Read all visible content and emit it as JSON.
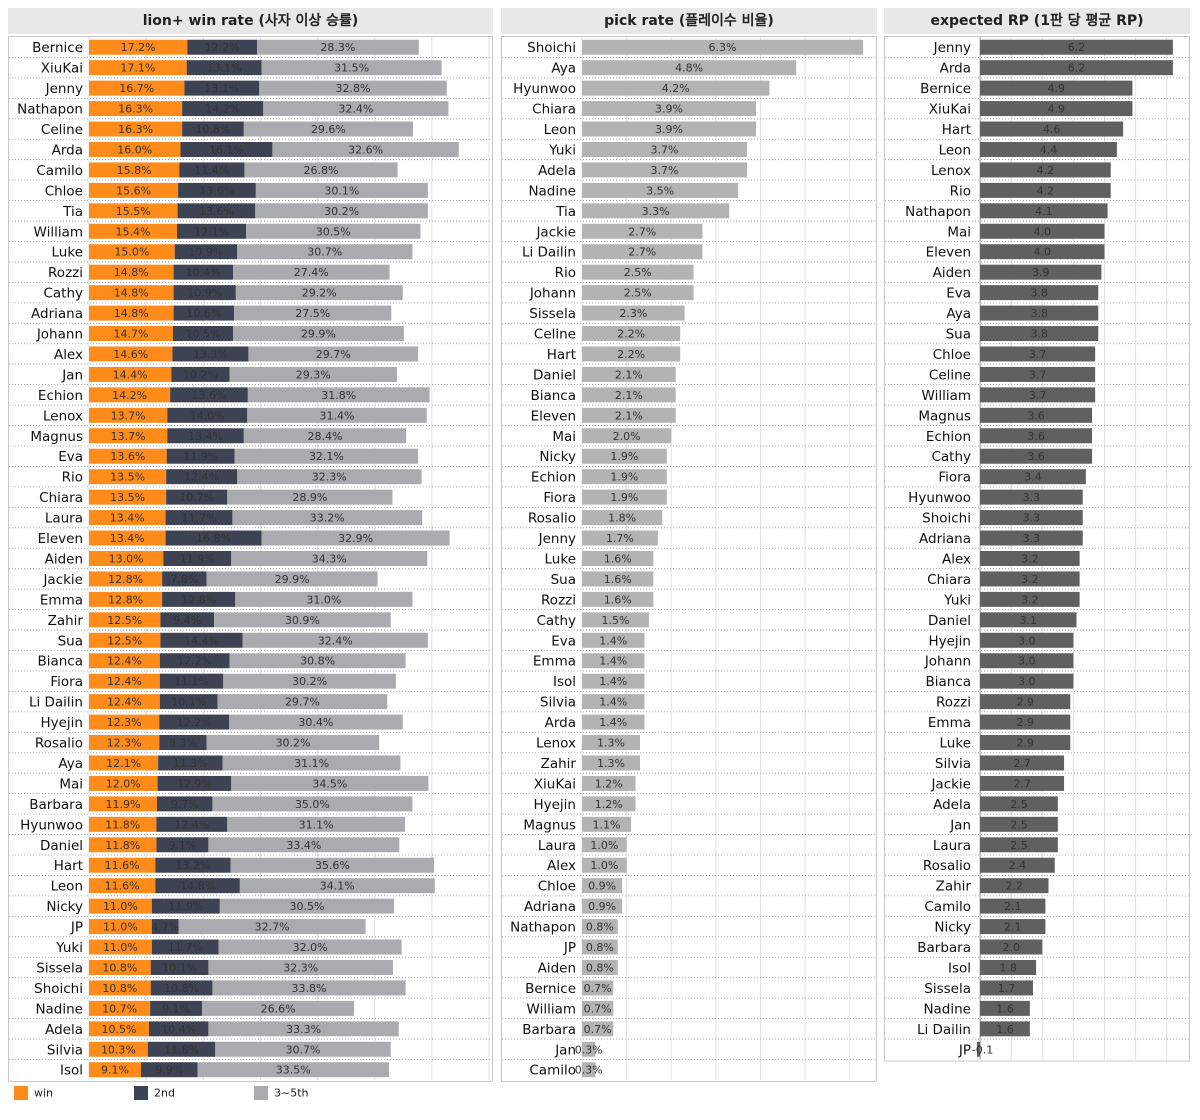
{
  "chart_data": [
    {
      "type": "bar",
      "stacked": true,
      "orientation": "horizontal",
      "title": "lion+ win rate (사자 이상 승률)",
      "categories": [
        "Bernice",
        "XiuKai",
        "Jenny",
        "Nathapon",
        "Celine",
        "Arda",
        "Camilo",
        "Chloe",
        "Tia",
        "William",
        "Luke",
        "Rozzi",
        "Cathy",
        "Adriana",
        "Johann",
        "Alex",
        "Jan",
        "Echion",
        "Lenox",
        "Magnus",
        "Eva",
        "Rio",
        "Chiara",
        "Laura",
        "Eleven",
        "Aiden",
        "Jackie",
        "Emma",
        "Zahir",
        "Sua",
        "Bianca",
        "Fiora",
        "Li Dailin",
        "Hyejin",
        "Rosalio",
        "Aya",
        "Mai",
        "Barbara",
        "Hyunwoo",
        "Daniel",
        "Hart",
        "Leon",
        "Nicky",
        "JP",
        "Yuki",
        "Sissela",
        "Shoichi",
        "Nadine",
        "Adela",
        "Silvia",
        "Isol"
      ],
      "series": [
        {
          "name": "win",
          "color": "#ff8c1a",
          "values": [
            17.2,
            17.1,
            16.7,
            16.3,
            16.3,
            16.0,
            15.8,
            15.6,
            15.5,
            15.4,
            15.0,
            14.8,
            14.8,
            14.8,
            14.7,
            14.6,
            14.4,
            14.2,
            13.7,
            13.7,
            13.6,
            13.5,
            13.5,
            13.4,
            13.4,
            13.0,
            12.8,
            12.8,
            12.5,
            12.5,
            12.4,
            12.4,
            12.4,
            12.3,
            12.3,
            12.1,
            12.0,
            11.9,
            11.8,
            11.8,
            11.6,
            11.6,
            11.0,
            11.0,
            11.0,
            10.8,
            10.8,
            10.7,
            10.5,
            10.3,
            9.1
          ]
        },
        {
          "name": "2nd",
          "color": "#3e4353",
          "values": [
            12.2,
            13.1,
            13.1,
            14.2,
            10.8,
            16.1,
            11.4,
            13.6,
            13.6,
            12.1,
            10.9,
            10.4,
            10.9,
            10.6,
            10.5,
            13.3,
            10.2,
            13.6,
            14.0,
            13.4,
            11.9,
            12.4,
            10.7,
            11.7,
            16.8,
            11.9,
            7.8,
            12.8,
            9.4,
            14.4,
            12.2,
            11.1,
            10.1,
            12.2,
            8.3,
            11.3,
            12.9,
            9.7,
            12.4,
            9.1,
            13.2,
            14.8,
            11.9,
            4.7,
            11.7,
            10.1,
            10.8,
            9.1,
            10.4,
            11.8,
            9.9
          ]
        },
        {
          "name": "3~5th",
          "color": "#a9abae",
          "values": [
            28.3,
            31.5,
            32.8,
            32.4,
            29.6,
            32.6,
            26.8,
            30.1,
            30.2,
            30.5,
            30.7,
            27.4,
            29.2,
            27.5,
            29.9,
            29.7,
            29.3,
            31.8,
            31.4,
            28.4,
            32.1,
            32.3,
            28.9,
            33.2,
            32.9,
            34.3,
            29.9,
            31.0,
            30.9,
            32.4,
            30.8,
            30.2,
            29.7,
            30.4,
            30.2,
            31.1,
            34.5,
            35.0,
            31.1,
            33.4,
            35.6,
            34.1,
            30.5,
            32.7,
            32.0,
            32.3,
            33.8,
            26.6,
            33.3,
            30.7,
            33.5
          ]
        }
      ],
      "value_suffix": "%",
      "xlim": [
        0,
        70
      ],
      "grid": true
    },
    {
      "type": "bar",
      "orientation": "horizontal",
      "title": "pick rate (플레이수 비율)",
      "categories": [
        "Shoichi",
        "Aya",
        "Hyunwoo",
        "Chiara",
        "Leon",
        "Yuki",
        "Adela",
        "Nadine",
        "Tia",
        "Jackie",
        "Li Dailin",
        "Rio",
        "Johann",
        "Sissela",
        "Celine",
        "Hart",
        "Daniel",
        "Bianca",
        "Eleven",
        "Mai",
        "Nicky",
        "Echion",
        "Fiora",
        "Rosalio",
        "Jenny",
        "Luke",
        "Sua",
        "Rozzi",
        "Cathy",
        "Eva",
        "Emma",
        "Isol",
        "Silvia",
        "Arda",
        "Lenox",
        "Zahir",
        "XiuKai",
        "Hyejin",
        "Magnus",
        "Laura",
        "Alex",
        "Chloe",
        "Adriana",
        "Nathapon",
        "JP",
        "Aiden",
        "Bernice",
        "William",
        "Barbara",
        "Jan",
        "Camilo"
      ],
      "values": [
        6.3,
        4.8,
        4.2,
        3.9,
        3.9,
        3.7,
        3.7,
        3.5,
        3.3,
        2.7,
        2.7,
        2.5,
        2.5,
        2.3,
        2.2,
        2.2,
        2.1,
        2.1,
        2.1,
        2.0,
        1.9,
        1.9,
        1.9,
        1.8,
        1.7,
        1.6,
        1.6,
        1.6,
        1.5,
        1.4,
        1.4,
        1.4,
        1.4,
        1.4,
        1.3,
        1.3,
        1.2,
        1.2,
        1.1,
        1.0,
        1.0,
        0.9,
        0.9,
        0.8,
        0.8,
        0.8,
        0.7,
        0.7,
        0.7,
        0.3,
        0.3
      ],
      "color": "#b3b3b3",
      "value_suffix": "%",
      "xlim": [
        0,
        6.5
      ],
      "grid": true
    },
    {
      "type": "bar",
      "orientation": "horizontal",
      "title": "expected RP (1판 당 평균 RP)",
      "categories": [
        "Jenny",
        "Arda",
        "Bernice",
        "XiuKai",
        "Hart",
        "Leon",
        "Lenox",
        "Rio",
        "Nathapon",
        "Mai",
        "Eleven",
        "Aiden",
        "Eva",
        "Aya",
        "Sua",
        "Chloe",
        "Celine",
        "William",
        "Magnus",
        "Echion",
        "Cathy",
        "Fiora",
        "Hyunwoo",
        "Shoichi",
        "Adriana",
        "Alex",
        "Chiara",
        "Yuki",
        "Daniel",
        "Hyejin",
        "Johann",
        "Bianca",
        "Rozzi",
        "Emma",
        "Luke",
        "Silvia",
        "Jackie",
        "Adela",
        "Jan",
        "Laura",
        "Rosalio",
        "Zahir",
        "Camilo",
        "Nicky",
        "Barbara",
        "Isol",
        "Sissela",
        "Nadine",
        "Li Dailin",
        "JP"
      ],
      "values": [
        6.2,
        6.2,
        4.9,
        4.9,
        4.6,
        4.4,
        4.2,
        4.2,
        4.1,
        4.0,
        4.0,
        3.9,
        3.8,
        3.8,
        3.8,
        3.7,
        3.7,
        3.7,
        3.6,
        3.6,
        3.6,
        3.4,
        3.3,
        3.3,
        3.3,
        3.2,
        3.2,
        3.2,
        3.1,
        3.0,
        3.0,
        3.0,
        2.9,
        2.9,
        2.9,
        2.7,
        2.7,
        2.5,
        2.5,
        2.5,
        2.4,
        2.2,
        2.1,
        2.1,
        2.0,
        1.8,
        1.7,
        1.6,
        1.6,
        -0.1
      ],
      "color": "#606060",
      "xlim": [
        -0.1,
        6.3
      ],
      "grid": true
    }
  ],
  "legend": [
    {
      "label": "win",
      "color": "#ff8c1a"
    },
    {
      "label": "2nd",
      "color": "#3e4353"
    },
    {
      "label": "3~5th",
      "color": "#a9abae"
    }
  ]
}
